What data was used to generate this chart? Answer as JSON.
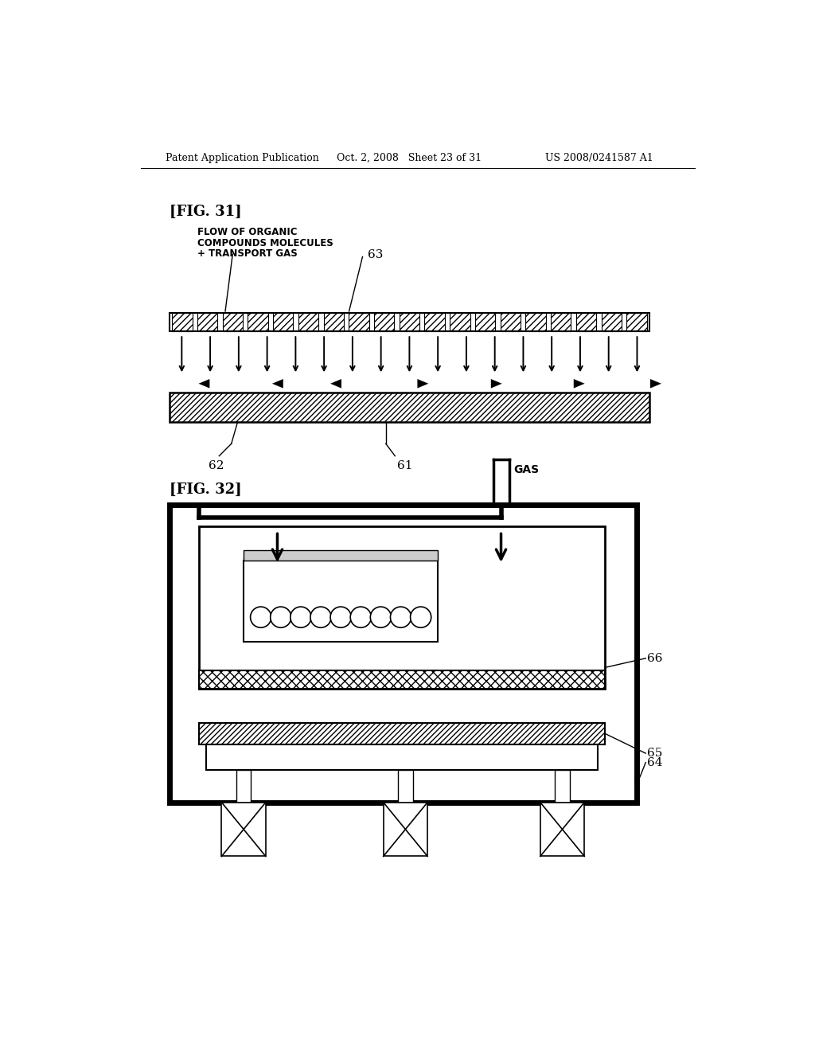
{
  "bg_color": "#ffffff",
  "header_left": "Patent Application Publication",
  "header_mid": "Oct. 2, 2008   Sheet 23 of 31",
  "header_right": "US 2008/0241587 A1",
  "fig31_label": "[FIG. 31]",
  "fig32_label": "[FIG. 32]",
  "annotation_flow_line1": "FLOW OF ORGANIC",
  "annotation_flow_line2": "COMPOUNDS MOLECULES",
  "annotation_flow_line3": "+ TRANSPORT GAS",
  "label_63": "63",
  "label_62": "62",
  "label_61": "61",
  "label_64": "64",
  "label_65": "65",
  "label_66": "66",
  "gas_label": "GAS"
}
